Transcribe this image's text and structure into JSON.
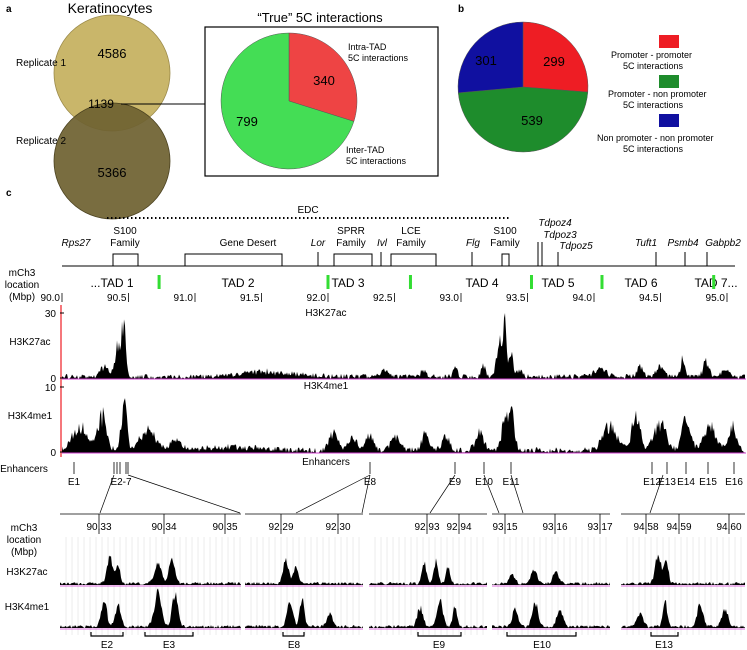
{
  "panel_a": {
    "label": "a",
    "venn_title": "Keratinocytes",
    "replicate1_label": "Replicate 1",
    "replicate2_label": "Replicate 2",
    "replicate1_only": "4586",
    "overlap": "1139",
    "replicate2_only": "5366",
    "colors": {
      "rep1": "#c9b66a",
      "rep2": "#6f6231"
    },
    "pie_title": "“True” 5C interactions",
    "intra_label_1": "Intra-TAD",
    "intra_label_2": "5C interactions",
    "inter_label_1": "Inter-TAD",
    "inter_label_2": "5C interactions"
  },
  "panel_b": {
    "label": "b",
    "legend": [
      {
        "line1": "Promoter - promoter",
        "line2": "5C interactions",
        "color": "#ee1d24"
      },
      {
        "line1": "Promoter - non promoter",
        "line2": "5C interactions",
        "color": "#1e8c2c"
      },
      {
        "line1": "Non promoter - non promoter",
        "line2": "5C interactions",
        "color": "#1010a0"
      }
    ]
  },
  "chart_data": [
    {
      "type": "pie",
      "title": "“True” 5C interactions",
      "labels": [
        "Intra-TAD 5C interactions",
        "Inter-TAD 5C interactions"
      ],
      "values": [
        340,
        799
      ],
      "colors": [
        "#ee4444",
        "#44dd55"
      ]
    },
    {
      "type": "pie",
      "title": "",
      "labels": [
        "Promoter - promoter 5C interactions",
        "Promoter - non promoter 5C interactions",
        "Non promoter - non promoter 5C interactions"
      ],
      "values": [
        299,
        539,
        301
      ],
      "colors": [
        "#ee1d24",
        "#1e8c2c",
        "#1010a0"
      ]
    }
  ],
  "panel_c": {
    "label": "c",
    "edc_label": "EDC",
    "genes": [
      {
        "name": "Rps27",
        "italic": true,
        "lines": [
          "Rps27"
        ],
        "pos": 90.06
      },
      {
        "name": "S100 Family",
        "italic": false,
        "lines": [
          "S100",
          "Family"
        ],
        "pos": 90.49
      },
      {
        "name": "Gene Desert",
        "italic": false,
        "lines": [
          "Gene Desert"
        ],
        "pos": 91.45
      },
      {
        "name": "Lor",
        "italic": true,
        "lines": [
          "Lor"
        ],
        "pos": 92.02
      },
      {
        "name": "SPRR Family",
        "italic": false,
        "lines": [
          "SPRR",
          "Family"
        ],
        "pos": 92.22
      },
      {
        "name": "Ivl",
        "italic": true,
        "lines": [
          "Ivl"
        ],
        "pos": 92.42
      },
      {
        "name": "LCE Family",
        "italic": false,
        "lines": [
          "LCE",
          "Family"
        ],
        "pos": 92.67
      },
      {
        "name": "Flg",
        "italic": true,
        "lines": [
          "Flg"
        ],
        "pos": 93.1
      },
      {
        "name": "S100 Family 2",
        "italic": false,
        "lines": [
          "S100",
          "Family"
        ],
        "pos": 93.47
      },
      {
        "name": "Tdpoz4",
        "italic": true,
        "lines": [
          "Tdpoz4"
        ],
        "pos": 93.7
      },
      {
        "name": "Tdpoz3",
        "italic": true,
        "lines": [
          "Tdpoz3"
        ],
        "pos": 93.7
      },
      {
        "name": "Tdpoz5",
        "italic": true,
        "lines": [
          "Tdpoz5"
        ],
        "pos": 93.86
      },
      {
        "name": "Tuft1",
        "italic": true,
        "lines": [
          "Tuft1"
        ],
        "pos": 94.48
      },
      {
        "name": "Psmb4",
        "italic": true,
        "lines": [
          "Psmb4"
        ],
        "pos": 94.88
      },
      {
        "name": "Gabpb2",
        "italic": true,
        "lines": [
          "Gabpb2"
        ],
        "pos": 95.15
      }
    ],
    "axis_label_1": "mCh3",
    "axis_label_2": "location",
    "axis_label_3": "(Mbp)",
    "tads": [
      "...TAD 1",
      "TAD 2",
      "TAD 3",
      "TAD 4",
      "TAD 5",
      "TAD 6",
      "TAD 7..."
    ],
    "tad_boundaries": [
      90.73,
      92.0,
      92.62,
      93.53,
      94.06,
      94.9
    ],
    "tick_labels": [
      "90.0",
      "90.5",
      "91.0",
      "91.5",
      "92.0",
      "92.5",
      "93.0",
      "93.5",
      "94.0",
      "94.5",
      "95.0"
    ],
    "track1_name": "H3K27ac",
    "track1_ylabel": "H3K27ac",
    "track1_max": "30",
    "track1_min": "0",
    "track2_name": "H3K4me1",
    "track2_ylabel": "H3K4me1",
    "track2_max": "10",
    "track2_min": "0",
    "enhancers_title": "Enhancers",
    "enhancers_row_label": "Enhancers",
    "enhancers": [
      "E1",
      "E2-7",
      "E8",
      "E9",
      "E10",
      "E11",
      "E12",
      "E13",
      "E14",
      "E15",
      "E16"
    ],
    "zoom_axis_1": "mCh3",
    "zoom_axis_2": "location",
    "zoom_axis_3": "(Mbp)",
    "zoom_track1": "H3K27ac",
    "zoom_track2": "H3K4me1",
    "zooms": [
      {
        "ticks": [
          "90.33",
          "90.34",
          "90.35"
        ],
        "enh": [
          "E2",
          "E3"
        ]
      },
      {
        "ticks": [
          "92.29",
          "92.30"
        ],
        "enh": [
          "E8"
        ]
      },
      {
        "ticks": [
          "92.93",
          "92.94"
        ],
        "enh": [
          "E9"
        ]
      },
      {
        "ticks": [
          "93.15",
          "93.16",
          "93.17"
        ],
        "enh": [
          "E10"
        ]
      },
      {
        "ticks": [
          "94.58",
          "94.59",
          "94.60"
        ],
        "enh": [
          "E13"
        ]
      }
    ]
  }
}
